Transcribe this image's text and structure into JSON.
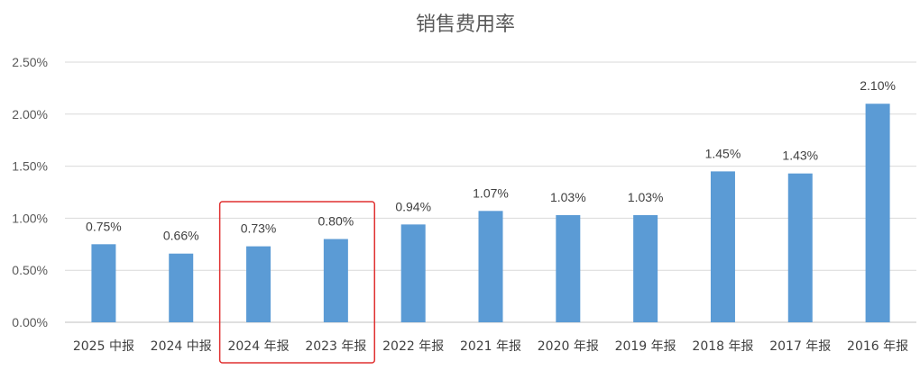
{
  "chart_data": {
    "type": "bar",
    "title": "销售费用率",
    "xlabel": "",
    "ylabel": "",
    "ylim": [
      0,
      2.5
    ],
    "ytick_values": [
      0,
      0.5,
      1.0,
      1.5,
      2.0,
      2.5
    ],
    "ytick_labels": [
      "0.00%",
      "0.50%",
      "1.00%",
      "1.50%",
      "2.00%",
      "2.50%"
    ],
    "grid": true,
    "legend": "none",
    "categories": [
      "2025 中报",
      "2024 中报",
      "2024 年报",
      "2023 年报",
      "2022 年报",
      "2021 年报",
      "2020 年报",
      "2019 年报",
      "2018 年报",
      "2017 年报",
      "2016 年报"
    ],
    "values": [
      0.75,
      0.66,
      0.73,
      0.8,
      0.94,
      1.07,
      1.03,
      1.03,
      1.45,
      1.43,
      2.1
    ],
    "data_labels": [
      "0.75%",
      "0.66%",
      "0.73%",
      "0.80%",
      "0.94%",
      "1.07%",
      "1.03%",
      "1.03%",
      "1.45%",
      "1.43%",
      "2.10%"
    ],
    "highlighted_categories": [
      "2024 年报",
      "2023 年报"
    ],
    "colors": {
      "bar": "#5B9BD5",
      "grid": "#D9D9D9",
      "axis": "#BFBFBF",
      "highlight": "#E03030",
      "text": "#595959"
    }
  }
}
